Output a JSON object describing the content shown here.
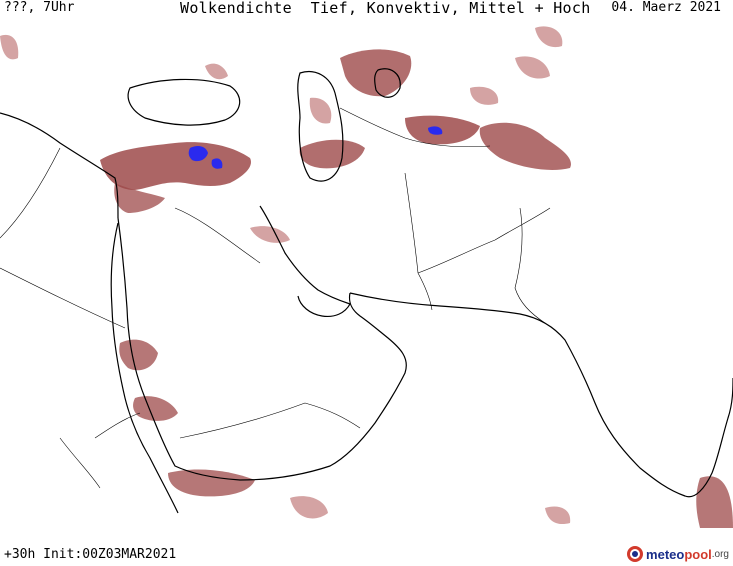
{
  "header": {
    "left": "???, 7Uhr",
    "title": "Wolkendichte  Tief, Konvektiv, Mittel + Hoch",
    "date": "04. Maerz 2021"
  },
  "footer": {
    "run_info": "+30h Init:00Z03MAR2021"
  },
  "brand": {
    "part1": "meteo",
    "part2": "pool",
    "suffix": ".org",
    "logo_icon": "meteopool-logo-icon"
  },
  "colors": {
    "cloud_dense": "#9e4a4a",
    "cloud_light": "#c98c8c",
    "cloud_max": "#2a2aee",
    "coast": "#000000",
    "border": "#000000"
  }
}
